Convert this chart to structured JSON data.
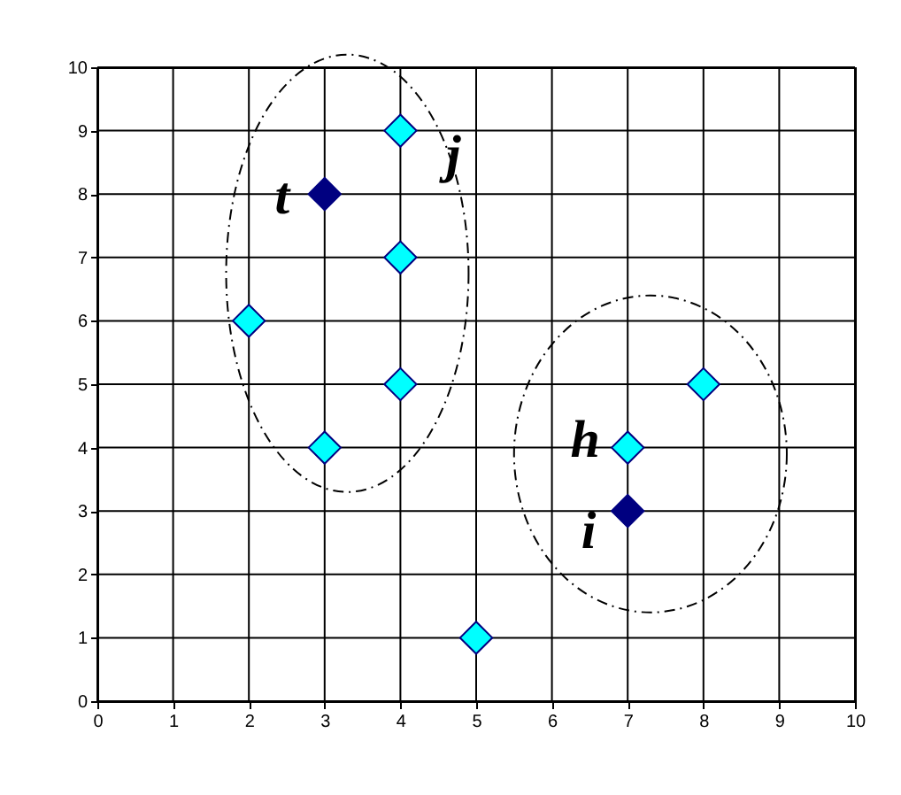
{
  "chart_data": {
    "type": "scatter",
    "marker": "diamond",
    "grid": true,
    "xlim": [
      0,
      10
    ],
    "ylim": [
      0,
      10
    ],
    "xticks": [
      0,
      1,
      2,
      3,
      4,
      5,
      6,
      7,
      8,
      9,
      10
    ],
    "yticks": [
      0,
      1,
      2,
      3,
      4,
      5,
      6,
      7,
      8,
      9,
      10
    ],
    "series": [
      {
        "color": "#00ffff",
        "x": [
          2,
          3,
          4,
          4,
          4,
          5,
          7,
          8
        ],
        "values": [
          6,
          4,
          9,
          7,
          5,
          1,
          4,
          5
        ]
      },
      {
        "color": "#000080",
        "x": [
          3,
          7
        ],
        "values": [
          8,
          3
        ]
      }
    ],
    "annotations": [
      {
        "text": "t",
        "x": 3,
        "y": 8
      },
      {
        "text": "j",
        "x": 4,
        "y": 9
      },
      {
        "text": "h",
        "x": 7,
        "y": 4
      },
      {
        "text": "i",
        "x": 7,
        "y": 3
      }
    ]
  }
}
